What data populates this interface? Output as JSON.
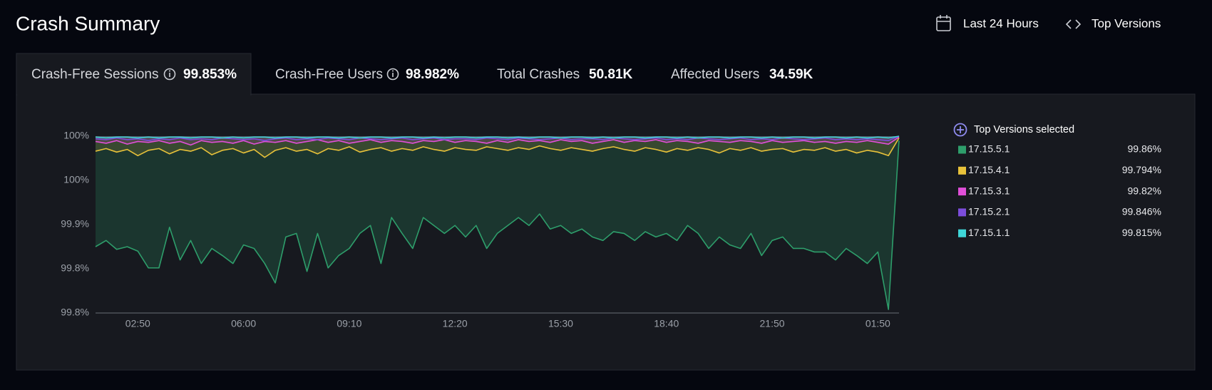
{
  "header": {
    "title": "Crash Summary",
    "date_range": "Last 24 Hours",
    "versions_button": "Top Versions"
  },
  "tabs": [
    {
      "label": "Crash-Free Sessions",
      "value": "99.853%"
    },
    {
      "label": "Crash-Free Users",
      "value": "98.982%"
    },
    {
      "label": "Total Crashes",
      "value": "50.81K"
    },
    {
      "label": "Affected Users",
      "value": "34.59K"
    }
  ],
  "chart_data": {
    "type": "line",
    "legend_title": "Top Versions selected",
    "categories": [
      null,
      null,
      null,
      null,
      "02:50",
      null,
      null,
      null,
      null,
      null,
      null,
      null,
      null,
      null,
      "06:00",
      null,
      null,
      null,
      null,
      null,
      null,
      null,
      null,
      null,
      "09:10",
      null,
      null,
      null,
      null,
      null,
      null,
      null,
      null,
      null,
      "12:20",
      null,
      null,
      null,
      null,
      null,
      null,
      null,
      null,
      null,
      "15:30",
      null,
      null,
      null,
      null,
      null,
      null,
      null,
      null,
      null,
      "18:40",
      null,
      null,
      null,
      null,
      null,
      null,
      null,
      null,
      null,
      "21:50",
      null,
      null,
      null,
      null,
      null,
      null,
      null,
      null,
      null,
      "01:50",
      null,
      null
    ],
    "ylim": [
      99.8,
      100
    ],
    "yticks": [
      {
        "value": 99.8,
        "label": "99.8%"
      },
      {
        "value": 99.85,
        "label": "99.8%"
      },
      {
        "value": 99.9,
        "label": "99.9%"
      },
      {
        "value": 99.95,
        "label": "100%"
      },
      {
        "value": 100,
        "label": "100%"
      }
    ],
    "grid": false,
    "series": [
      {
        "name": "17.15.5.1",
        "color": "#2e9e6b",
        "summary": 99.86,
        "summary_label": "99.86%",
        "values": [
          99.875,
          99.882,
          99.872,
          99.875,
          99.87,
          99.851,
          99.851,
          99.897,
          99.86,
          99.882,
          99.856,
          99.873,
          99.865,
          99.856,
          99.877,
          99.873,
          99.856,
          99.834,
          99.886,
          99.89,
          99.847,
          99.89,
          99.851,
          99.865,
          99.873,
          99.89,
          99.899,
          99.856,
          99.908,
          99.89,
          99.873,
          99.908,
          99.899,
          99.89,
          99.899,
          99.886,
          99.899,
          99.873,
          99.89,
          99.899,
          99.908,
          99.899,
          99.912,
          99.895,
          99.899,
          99.89,
          99.895,
          99.886,
          99.882,
          99.892,
          99.89,
          99.882,
          99.892,
          99.886,
          99.89,
          99.882,
          99.899,
          99.89,
          99.873,
          99.886,
          99.877,
          99.873,
          99.89,
          99.865,
          99.882,
          99.886,
          99.873,
          99.873,
          99.869,
          99.869,
          99.86,
          99.873,
          99.865,
          99.856,
          99.869,
          99.804,
          99.995
        ]
      },
      {
        "name": "17.15.4.1",
        "color": "#e8c23a",
        "summary": 99.794,
        "summary_label": "99.794%",
        "values": [
          99.983,
          99.986,
          99.982,
          99.985,
          99.978,
          99.984,
          99.986,
          99.98,
          99.985,
          99.983,
          99.987,
          99.979,
          99.984,
          99.986,
          99.981,
          99.985,
          99.976,
          99.984,
          99.987,
          99.983,
          99.985,
          99.98,
          99.986,
          99.984,
          99.988,
          99.982,
          99.985,
          99.987,
          99.983,
          99.986,
          99.984,
          99.988,
          99.985,
          99.983,
          99.987,
          99.985,
          99.984,
          99.988,
          99.986,
          99.984,
          99.987,
          99.985,
          99.989,
          99.986,
          99.984,
          99.987,
          99.985,
          99.983,
          99.986,
          99.988,
          99.985,
          99.983,
          99.987,
          99.985,
          99.982,
          99.986,
          99.984,
          99.987,
          99.985,
          99.981,
          99.986,
          99.984,
          99.987,
          99.983,
          99.985,
          99.986,
          99.982,
          99.985,
          99.984,
          99.987,
          99.983,
          99.985,
          99.981,
          99.984,
          99.982,
          99.978,
          99.998
        ]
      },
      {
        "name": "17.15.3.1",
        "color": "#e04fd8",
        "summary": 99.82,
        "summary_label": "99.82%",
        "values": [
          99.994,
          99.992,
          99.995,
          99.991,
          99.994,
          99.993,
          99.995,
          99.992,
          99.994,
          99.99,
          99.995,
          99.993,
          99.994,
          99.992,
          99.995,
          99.991,
          99.994,
          99.993,
          99.995,
          99.992,
          99.994,
          99.996,
          99.993,
          99.995,
          99.992,
          99.994,
          99.996,
          99.993,
          99.995,
          99.994,
          99.992,
          99.995,
          99.994,
          99.996,
          99.993,
          99.995,
          99.994,
          99.992,
          99.995,
          99.993,
          99.996,
          99.994,
          99.995,
          99.993,
          99.996,
          99.994,
          99.995,
          99.992,
          99.994,
          99.996,
          99.993,
          99.995,
          99.994,
          99.996,
          99.993,
          99.995,
          99.994,
          99.992,
          99.995,
          99.994,
          99.993,
          99.995,
          99.994,
          99.992,
          99.995,
          99.993,
          99.994,
          99.995,
          99.993,
          99.994,
          99.992,
          99.994,
          99.993,
          99.995,
          99.993,
          99.991,
          99.999
        ]
      },
      {
        "name": "17.15.2.1",
        "color": "#7c4ddb",
        "summary": 99.846,
        "summary_label": "99.846%",
        "values": [
          99.997,
          99.996,
          99.998,
          99.996,
          99.997,
          99.995,
          99.997,
          99.996,
          99.998,
          99.996,
          99.997,
          99.996,
          99.998,
          99.997,
          99.996,
          99.997,
          99.995,
          99.997,
          99.998,
          99.996,
          99.997,
          99.996,
          99.998,
          99.997,
          99.996,
          99.998,
          99.997,
          99.996,
          99.997,
          99.998,
          99.996,
          99.997,
          99.998,
          99.996,
          99.997,
          99.997,
          99.996,
          99.998,
          99.997,
          99.996,
          99.998,
          99.997,
          99.996,
          99.997,
          99.998,
          99.996,
          99.997,
          99.997,
          99.996,
          99.998,
          99.997,
          99.996,
          99.997,
          99.998,
          99.996,
          99.997,
          99.996,
          99.998,
          99.997,
          99.996,
          99.997,
          99.998,
          99.996,
          99.997,
          99.996,
          99.998,
          99.997,
          99.996,
          99.997,
          99.998,
          99.996,
          99.997,
          99.996,
          99.997,
          99.996,
          99.995,
          100
        ]
      },
      {
        "name": "17.15.1.1",
        "color": "#3fd6d8",
        "summary": 99.815,
        "summary_label": "99.815%",
        "values": [
          99.999,
          99.998,
          99.999,
          99.999,
          99.998,
          99.999,
          99.998,
          99.999,
          99.999,
          99.998,
          99.999,
          99.999,
          99.998,
          99.999,
          99.998,
          99.999,
          99.999,
          99.998,
          99.999,
          99.999,
          99.998,
          99.999,
          99.999,
          99.998,
          99.999,
          99.998,
          99.999,
          99.999,
          99.998,
          99.999,
          99.999,
          99.998,
          99.999,
          99.998,
          99.999,
          99.999,
          99.998,
          99.999,
          99.999,
          99.998,
          99.999,
          99.998,
          99.999,
          99.999,
          99.998,
          99.999,
          99.999,
          99.998,
          99.999,
          99.998,
          99.999,
          99.999,
          99.998,
          99.999,
          99.999,
          99.998,
          99.999,
          99.998,
          99.999,
          99.999,
          99.998,
          99.999,
          99.999,
          99.998,
          99.999,
          99.998,
          99.999,
          99.999,
          99.998,
          99.999,
          99.999,
          99.998,
          99.999,
          99.998,
          99.999,
          99.998,
          100
        ]
      }
    ]
  }
}
